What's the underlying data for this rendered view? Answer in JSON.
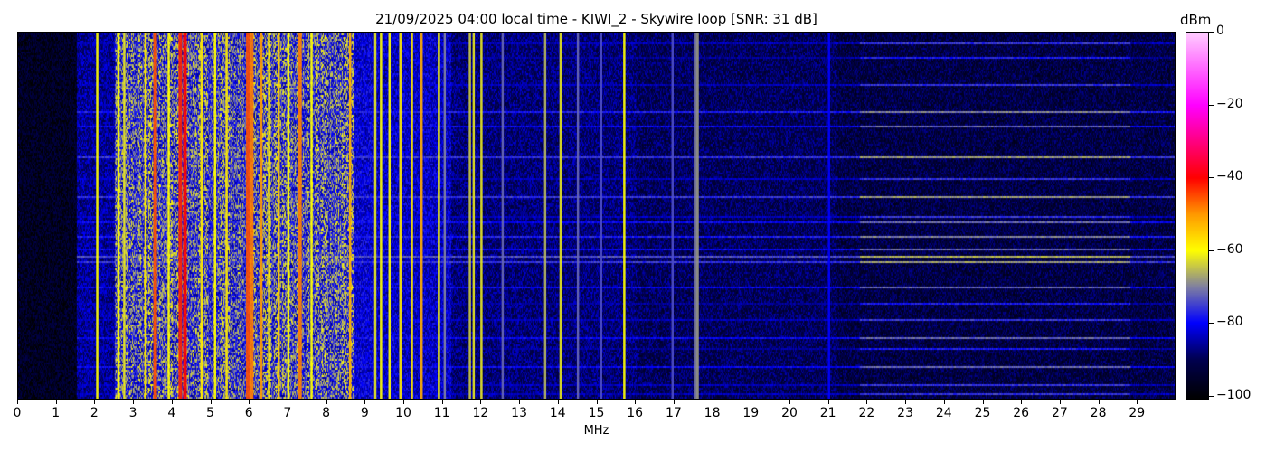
{
  "chart_data": {
    "type": "heatmap",
    "title": "21/09/2025 04:00 local time - KIWI_2 - Skywire loop [SNR: 31 dB]",
    "xlabel": "MHz",
    "ylabel": "",
    "xlim": [
      0,
      30
    ],
    "xticks": [
      0,
      1,
      2,
      3,
      4,
      5,
      6,
      7,
      8,
      9,
      10,
      11,
      12,
      13,
      14,
      15,
      16,
      17,
      18,
      19,
      20,
      21,
      22,
      23,
      24,
      25,
      26,
      27,
      28,
      29
    ],
    "colorbar": {
      "label": "dBm",
      "range": [
        -101,
        0
      ],
      "ticks": [
        0,
        -20,
        -40,
        -60,
        -80,
        -100
      ],
      "colormap": [
        {
          "value": -101,
          "color": "#000000"
        },
        {
          "value": -90,
          "color": "#000050"
        },
        {
          "value": -80,
          "color": "#0000ff"
        },
        {
          "value": -70,
          "color": "#8080a0"
        },
        {
          "value": -60,
          "color": "#ffff00"
        },
        {
          "value": -50,
          "color": "#ff9900"
        },
        {
          "value": -40,
          "color": "#ff0000"
        },
        {
          "value": -20,
          "color": "#ff00ff"
        },
        {
          "value": 0,
          "color": "#ffccff"
        }
      ]
    },
    "noise_floor": [
      {
        "from": 0,
        "to": 1.5,
        "level": -96
      },
      {
        "from": 1.5,
        "to": 2.5,
        "level": -86
      },
      {
        "from": 2.5,
        "to": 9.2,
        "level": -82
      },
      {
        "from": 9.2,
        "to": 11.2,
        "level": -83
      },
      {
        "from": 11.2,
        "to": 16,
        "level": -88
      },
      {
        "from": 16,
        "to": 21.2,
        "level": -90
      },
      {
        "from": 21.2,
        "to": 30,
        "level": -92
      }
    ],
    "broadband": {
      "from": 2.5,
      "to": 8.7,
      "level": -68
    },
    "carriers": [
      {
        "freq": 2.05,
        "level": -60
      },
      {
        "freq": 2.6,
        "level": -60
      },
      {
        "freq": 2.75,
        "level": -62
      },
      {
        "freq": 3.3,
        "level": -58
      },
      {
        "freq": 3.55,
        "level": -45
      },
      {
        "freq": 3.9,
        "level": -60
      },
      {
        "freq": 4.2,
        "level": -42
      },
      {
        "freq": 4.32,
        "level": -40
      },
      {
        "freq": 4.75,
        "level": -58
      },
      {
        "freq": 5.1,
        "level": -60
      },
      {
        "freq": 5.4,
        "level": -58
      },
      {
        "freq": 5.95,
        "level": -45
      },
      {
        "freq": 6.05,
        "level": -48
      },
      {
        "freq": 6.3,
        "level": -50
      },
      {
        "freq": 6.5,
        "level": -58
      },
      {
        "freq": 6.75,
        "level": -55
      },
      {
        "freq": 7.0,
        "level": -60
      },
      {
        "freq": 7.3,
        "level": -48
      },
      {
        "freq": 7.6,
        "level": -60
      },
      {
        "freq": 8.6,
        "level": -52
      },
      {
        "freq": 9.25,
        "level": -62
      },
      {
        "freq": 9.4,
        "level": -60
      },
      {
        "freq": 9.62,
        "level": -60
      },
      {
        "freq": 9.9,
        "level": -58
      },
      {
        "freq": 10.2,
        "level": -58
      },
      {
        "freq": 10.45,
        "level": -52
      },
      {
        "freq": 10.9,
        "level": -60
      },
      {
        "freq": 11.05,
        "level": -70
      },
      {
        "freq": 11.7,
        "level": -64
      },
      {
        "freq": 11.8,
        "level": -62
      },
      {
        "freq": 12.0,
        "level": -62
      },
      {
        "freq": 12.55,
        "level": -72
      },
      {
        "freq": 13.65,
        "level": -66
      },
      {
        "freq": 14.05,
        "level": -62
      },
      {
        "freq": 14.5,
        "level": -72
      },
      {
        "freq": 15.1,
        "level": -74
      },
      {
        "freq": 15.7,
        "level": -60
      },
      {
        "freq": 16.95,
        "level": -74
      },
      {
        "freq": 17.55,
        "level": -70
      },
      {
        "freq": 17.6,
        "level": -68
      },
      {
        "freq": 21.0,
        "level": -80
      }
    ],
    "time_lines": [
      {
        "time_fraction": 0.03,
        "level": -80
      },
      {
        "time_fraction": 0.07,
        "level": -82
      },
      {
        "time_fraction": 0.145,
        "level": -80
      },
      {
        "time_fraction": 0.22,
        "level": -74
      },
      {
        "time_fraction": 0.255,
        "level": -76
      },
      {
        "time_fraction": 0.34,
        "level": -72
      },
      {
        "time_fraction": 0.4,
        "level": -80
      },
      {
        "time_fraction": 0.447,
        "level": -72
      },
      {
        "time_fraction": 0.5,
        "level": -80
      },
      {
        "time_fraction": 0.516,
        "level": -76
      },
      {
        "time_fraction": 0.558,
        "level": -74
      },
      {
        "time_fraction": 0.59,
        "level": -76
      },
      {
        "time_fraction": 0.612,
        "level": -70
      },
      {
        "time_fraction": 0.627,
        "level": -72
      },
      {
        "time_fraction": 0.695,
        "level": -76
      },
      {
        "time_fraction": 0.74,
        "level": -82
      },
      {
        "time_fraction": 0.78,
        "level": -80
      },
      {
        "time_fraction": 0.83,
        "level": -76
      },
      {
        "time_fraction": 0.86,
        "level": -82
      },
      {
        "time_fraction": 0.91,
        "level": -76
      },
      {
        "time_fraction": 0.958,
        "level": -80
      },
      {
        "time_fraction": 0.985,
        "level": -80
      }
    ]
  }
}
